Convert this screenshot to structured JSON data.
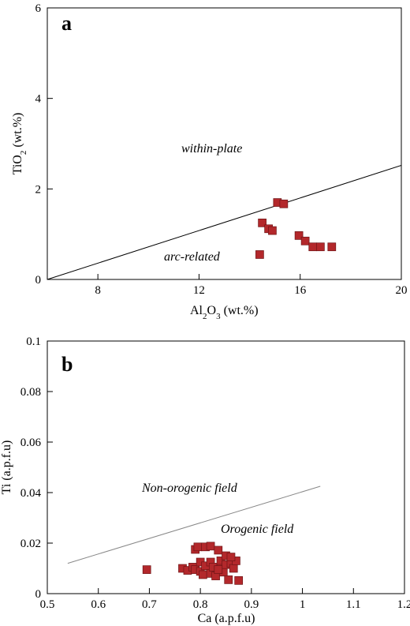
{
  "colors": {
    "marker": "#b3282b",
    "line_a": "#000000",
    "line_b": "#888888"
  },
  "chart_data": [
    {
      "type": "scatter",
      "panel_label": "a",
      "xlabel": {
        "main": "Al",
        "sub": "2",
        "mid": "O",
        "sub2": "3",
        "rest": " (wt.%)"
      },
      "ylabel": {
        "main": "TiO",
        "sub": "2",
        "rest": " (wt.%)"
      },
      "xlim": [
        6,
        20
      ],
      "ylim": [
        0,
        6
      ],
      "xticks": [
        8,
        12,
        16,
        20
      ],
      "yticks": [
        0,
        2,
        4,
        6
      ],
      "grid": false,
      "annotations": [
        "within-plate",
        "arc-related"
      ],
      "line": {
        "x": [
          6,
          20
        ],
        "y": [
          0,
          2.52
        ]
      },
      "points": [
        {
          "x": 15.1,
          "y": 1.7
        },
        {
          "x": 15.35,
          "y": 1.67
        },
        {
          "x": 14.5,
          "y": 1.25
        },
        {
          "x": 14.75,
          "y": 1.12
        },
        {
          "x": 14.9,
          "y": 1.08
        },
        {
          "x": 15.95,
          "y": 0.97
        },
        {
          "x": 16.2,
          "y": 0.85
        },
        {
          "x": 16.5,
          "y": 0.72
        },
        {
          "x": 16.8,
          "y": 0.72
        },
        {
          "x": 17.25,
          "y": 0.72
        },
        {
          "x": 14.4,
          "y": 0.55
        }
      ]
    },
    {
      "type": "scatter",
      "panel_label": "b",
      "xlabel": "Ca (a.p.f.u)",
      "ylabel": "Ti (a.p.f.u)",
      "xlim": [
        0.5,
        1.2
      ],
      "ylim": [
        0,
        0.1
      ],
      "xticks": [
        "0.5",
        "0.6",
        "0.7",
        "0.8",
        "0.9",
        "1",
        "1.1",
        "1.2"
      ],
      "yticks": [
        "0",
        "0.02",
        "0.04",
        "0.06",
        "0.08",
        "0.1"
      ],
      "grid": false,
      "annotations": [
        "Non-orogenic field",
        "Orogenic field"
      ],
      "line": {
        "x": [
          0.54,
          1.035
        ],
        "y": [
          0.012,
          0.0425
        ]
      },
      "points": [
        {
          "x": 0.695,
          "y": 0.0095
        },
        {
          "x": 0.765,
          "y": 0.01
        },
        {
          "x": 0.775,
          "y": 0.0092
        },
        {
          "x": 0.785,
          "y": 0.0105
        },
        {
          "x": 0.79,
          "y": 0.0095
        },
        {
          "x": 0.79,
          "y": 0.0175
        },
        {
          "x": 0.795,
          "y": 0.0185
        },
        {
          "x": 0.8,
          "y": 0.0125
        },
        {
          "x": 0.8,
          "y": 0.0088
        },
        {
          "x": 0.805,
          "y": 0.0075
        },
        {
          "x": 0.81,
          "y": 0.011
        },
        {
          "x": 0.81,
          "y": 0.0185
        },
        {
          "x": 0.82,
          "y": 0.0188
        },
        {
          "x": 0.82,
          "y": 0.0125
        },
        {
          "x": 0.82,
          "y": 0.008
        },
        {
          "x": 0.825,
          "y": 0.0105
        },
        {
          "x": 0.83,
          "y": 0.007
        },
        {
          "x": 0.835,
          "y": 0.0172
        },
        {
          "x": 0.84,
          "y": 0.013
        },
        {
          "x": 0.84,
          "y": 0.01
        },
        {
          "x": 0.845,
          "y": 0.0085
        },
        {
          "x": 0.85,
          "y": 0.015
        },
        {
          "x": 0.85,
          "y": 0.0115
        },
        {
          "x": 0.855,
          "y": 0.0055
        },
        {
          "x": 0.86,
          "y": 0.012
        },
        {
          "x": 0.865,
          "y": 0.01
        },
        {
          "x": 0.87,
          "y": 0.013
        },
        {
          "x": 0.875,
          "y": 0.0052
        },
        {
          "x": 0.835,
          "y": 0.0095
        },
        {
          "x": 0.86,
          "y": 0.0145
        }
      ]
    }
  ]
}
